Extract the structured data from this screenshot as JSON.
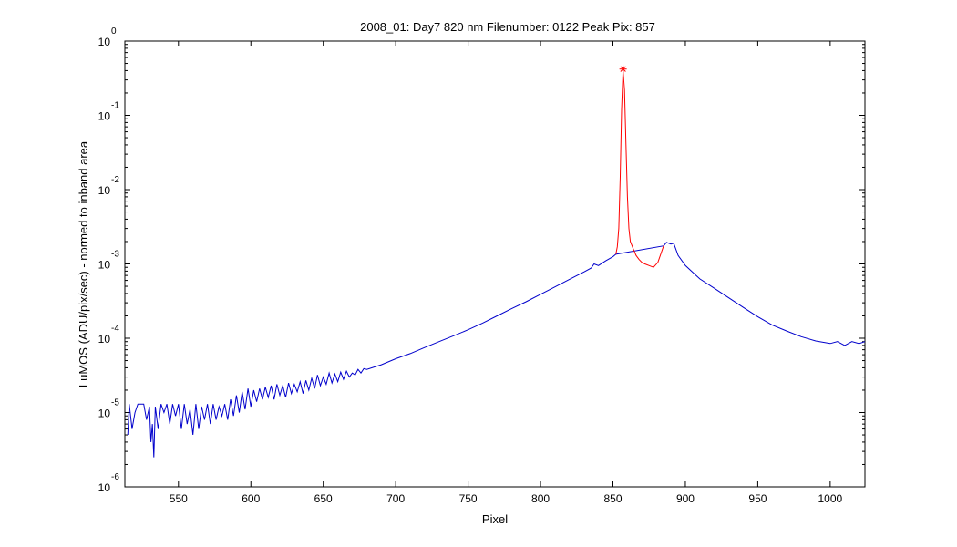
{
  "chart_data": {
    "type": "line",
    "title": "2008_01: Day7  820 nm  Filenumber: 0122 Peak Pix: 857",
    "xlabel": "Pixel",
    "ylabel": "LuMOS (ADU/pix/sec) - normed to inband area",
    "xlim": [
      513,
      1024
    ],
    "ylim": [
      1e-06,
      1
    ],
    "yscale": "log",
    "grid": false,
    "x_ticks": [
      550,
      600,
      650,
      700,
      750,
      800,
      850,
      900,
      950,
      1000
    ],
    "y_ticks": [
      {
        "base": "10",
        "exp": "0",
        "value": 1
      },
      {
        "base": "10",
        "exp": "-1",
        "value": 0.1
      },
      {
        "base": "10",
        "exp": "-2",
        "value": 0.01
      },
      {
        "base": "10",
        "exp": "-3",
        "value": 0.001
      },
      {
        "base": "10",
        "exp": "-4",
        "value": 0.0001
      },
      {
        "base": "10",
        "exp": "-5",
        "value": 1e-05
      },
      {
        "base": "10",
        "exp": "-6",
        "value": 1e-06
      }
    ],
    "series": [
      {
        "color": "#0000cc",
        "x": [
          515,
          516,
          518,
          520,
          522,
          524,
          526,
          528,
          530,
          531,
          532,
          533,
          534,
          536,
          538,
          540,
          542,
          544,
          546,
          548,
          550,
          552,
          554,
          556,
          558,
          560,
          562,
          564,
          566,
          568,
          570,
          572,
          574,
          576,
          578,
          580,
          582,
          584,
          586,
          588,
          590,
          592,
          594,
          596,
          598,
          600,
          602,
          604,
          606,
          608,
          610,
          612,
          614,
          616,
          618,
          620,
          622,
          624,
          626,
          628,
          630,
          632,
          634,
          636,
          638,
          640,
          642,
          644,
          646,
          648,
          650,
          652,
          654,
          656,
          658,
          660,
          662,
          664,
          666,
          668,
          670,
          672,
          674,
          676,
          678,
          680,
          690,
          700,
          710,
          720,
          730,
          740,
          750,
          760,
          770,
          780,
          790,
          800,
          810,
          820,
          830,
          835,
          837,
          840,
          845,
          850,
          852,
          885,
          887,
          890,
          892,
          895,
          900,
          910,
          920,
          930,
          940,
          950,
          960,
          970,
          980,
          990,
          1000,
          1005,
          1010,
          1015,
          1020,
          1024
        ],
        "y": [
          5e-06,
          1.3e-05,
          6e-06,
          1e-05,
          1.3e-05,
          1.3e-05,
          1.3e-05,
          8e-06,
          1.2e-05,
          4e-06,
          7e-06,
          2.5e-06,
          1.2e-05,
          6e-06,
          1.3e-05,
          1e-05,
          1.3e-05,
          7e-06,
          1.3e-05,
          9e-06,
          1.3e-05,
          6e-06,
          1.3e-05,
          7e-06,
          1.1e-05,
          5e-06,
          1.3e-05,
          6e-06,
          1.2e-05,
          8e-06,
          1.3e-05,
          7e-06,
          1.3e-05,
          8e-06,
          1.2e-05,
          9e-06,
          1.3e-05,
          8e-06,
          1.5e-05,
          9e-06,
          1.7e-05,
          1e-05,
          1.9e-05,
          1.1e-05,
          2.1e-05,
          1.2e-05,
          2e-05,
          1.4e-05,
          2.1e-05,
          1.5e-05,
          2.2e-05,
          1.6e-05,
          2.3e-05,
          1.5e-05,
          2.4e-05,
          1.7e-05,
          2.3e-05,
          1.6e-05,
          2.5e-05,
          1.8e-05,
          2.4e-05,
          1.9e-05,
          2.6e-05,
          1.8e-05,
          2.7e-05,
          2e-05,
          2.9e-05,
          2.1e-05,
          3.2e-05,
          2.3e-05,
          3e-05,
          2.4e-05,
          3.4e-05,
          2.5e-05,
          3.3e-05,
          2.6e-05,
          3.5e-05,
          2.8e-05,
          3.6e-05,
          3e-05,
          3.4e-05,
          3.2e-05,
          3.8e-05,
          3.4e-05,
          3.9e-05,
          3.8e-05,
          4.4e-05,
          5.3e-05,
          6.2e-05,
          7.5e-05,
          9e-05,
          0.000108,
          0.00013,
          0.00016,
          0.0002,
          0.00025,
          0.00031,
          0.00039,
          0.00049,
          0.00062,
          0.00078,
          0.00088,
          0.001,
          0.00095,
          0.0011,
          0.00125,
          0.00135,
          0.00175,
          0.00195,
          0.00185,
          0.0019,
          0.0013,
          0.00095,
          0.00063,
          0.00047,
          0.00035,
          0.00026,
          0.000195,
          0.00015,
          0.000125,
          0.000105,
          9.2e-05,
          8.5e-05,
          9e-05,
          8e-05,
          9e-05,
          8.5e-05,
          9e-05
        ]
      },
      {
        "color": "#ff0000",
        "x": [
          852,
          853,
          854,
          855,
          856,
          857,
          858,
          859,
          860,
          861,
          862,
          864,
          866,
          868,
          870,
          872,
          875,
          878,
          881,
          883,
          885
        ],
        "y": [
          0.00135,
          0.0017,
          0.003,
          0.015,
          0.12,
          0.4,
          0.22,
          0.04,
          0.008,
          0.003,
          0.002,
          0.0016,
          0.0013,
          0.00115,
          0.00105,
          0.001,
          0.00095,
          0.0009,
          0.00105,
          0.00135,
          0.00175
        ]
      }
    ],
    "peak_marker": {
      "x": 857,
      "y": 0.42,
      "color": "#ff0000",
      "symbol": "asterisk"
    }
  }
}
